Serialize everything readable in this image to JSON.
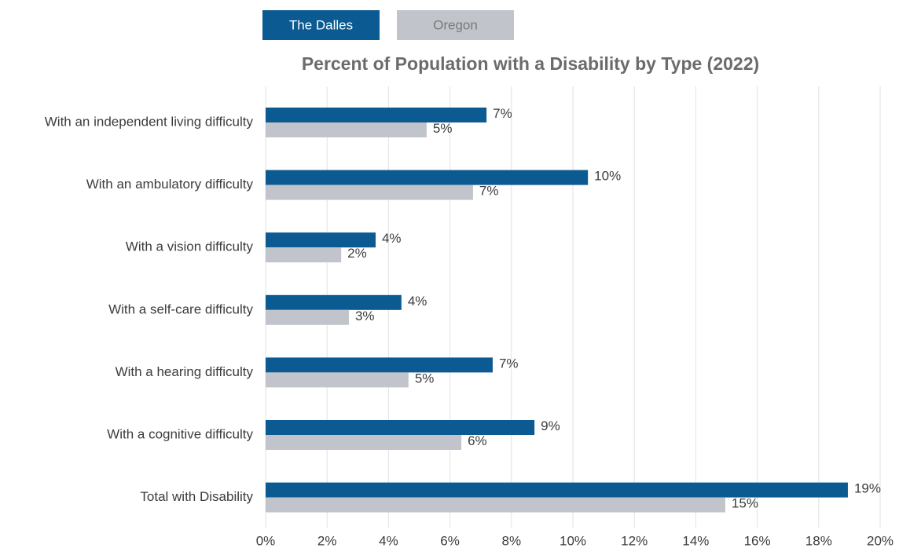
{
  "chart_data": {
    "type": "barh",
    "title": "Percent of Population with a Disability by Type (2022)",
    "categories": [
      "With an independent living difficulty",
      "With an ambulatory difficulty",
      "With a vision difficulty",
      "With a self-care difficulty",
      "With a hearing difficulty",
      "With a cognitive difficulty",
      "Total with Disability"
    ],
    "series": [
      {
        "name": "The Dalles",
        "color": "#0b5a92",
        "values": [
          7.19,
          10.49,
          3.58,
          4.42,
          7.39,
          8.75,
          18.95
        ],
        "value_labels": [
          "7%",
          "10%",
          "4%",
          "4%",
          "7%",
          "9%",
          "19%"
        ]
      },
      {
        "name": "Oregon",
        "color": "#c2c4cb",
        "values": [
          5.24,
          6.75,
          2.46,
          2.71,
          4.65,
          6.37,
          14.96
        ],
        "value_labels": [
          "5%",
          "7%",
          "2%",
          "3%",
          "5%",
          "6%",
          "15%"
        ]
      }
    ],
    "xlim": [
      0,
      20
    ],
    "xticks": [
      {
        "value": 0,
        "label": "0%"
      },
      {
        "value": 2,
        "label": "2%"
      },
      {
        "value": 4,
        "label": "4%"
      },
      {
        "value": 6,
        "label": "6%"
      },
      {
        "value": 8,
        "label": "8%"
      },
      {
        "value": 10,
        "label": "10%"
      },
      {
        "value": 12,
        "label": "12%"
      },
      {
        "value": 14,
        "label": "14%"
      },
      {
        "value": 16,
        "label": "16%"
      },
      {
        "value": 18,
        "label": "18%"
      },
      {
        "value": 20,
        "label": "20%"
      }
    ],
    "grid": true
  }
}
